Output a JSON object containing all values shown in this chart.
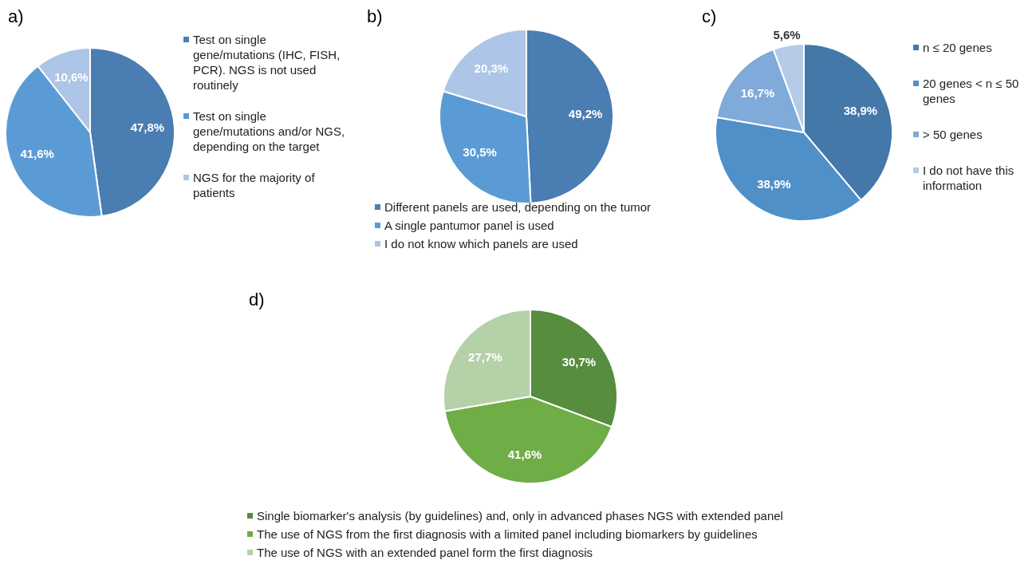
{
  "chart_data": [
    {
      "type": "pie",
      "title": "a)",
      "categories": [
        "Test on single gene/mutations (IHC, FISH, PCR). NGS is not used routinely",
        "Test on single gene/mutations and/or NGS, depending on the target",
        "NGS for the majority of patients"
      ],
      "values": [
        47.8,
        41.6,
        10.6
      ],
      "colors": [
        "#4a7db1",
        "#5b9bd5",
        "#adc5e6"
      ],
      "value_labels": [
        "47,8%",
        "41,6%",
        "10,6%"
      ],
      "legend": "right"
    },
    {
      "type": "pie",
      "title": "b)",
      "categories": [
        "Different panels are used, depending on the tumor",
        "A single pantumor panel is used",
        "I do not know which panels are used"
      ],
      "values": [
        49.2,
        30.5,
        20.3
      ],
      "colors": [
        "#4a7db1",
        "#5b9bd5",
        "#adc5e6"
      ],
      "value_labels": [
        "49,2%",
        "30,5%",
        "20,3%"
      ],
      "legend": "bottom"
    },
    {
      "type": "pie",
      "title": "c)",
      "categories": [
        "n ≤ 20 genes",
        "20 genes < n ≤ 50 genes",
        "> 50 genes",
        "I do not have this information"
      ],
      "values": [
        38.9,
        38.9,
        16.7,
        5.6
      ],
      "colors": [
        "#4378a8",
        "#5090c9",
        "#7faad9",
        "#b5cbe8"
      ],
      "value_labels": [
        "38,9%",
        "38,9%",
        "16,7%",
        "5,6%"
      ],
      "legend": "right"
    },
    {
      "type": "pie",
      "title": "d)",
      "categories": [
        "Single biomarker's analysis (by guidelines) and, only in advanced phases NGS with extended panel",
        "The use of NGS from the first diagnosis with a limited panel including biomarkers by guidelines",
        "The use of NGS with an extended panel form the first diagnosis"
      ],
      "values": [
        30.7,
        41.6,
        27.7
      ],
      "colors": [
        "#568d3f",
        "#6fad47",
        "#b5d1a7"
      ],
      "value_labels": [
        "30,7%",
        "41,6%",
        "27,7%"
      ],
      "legend": "bottom"
    }
  ]
}
